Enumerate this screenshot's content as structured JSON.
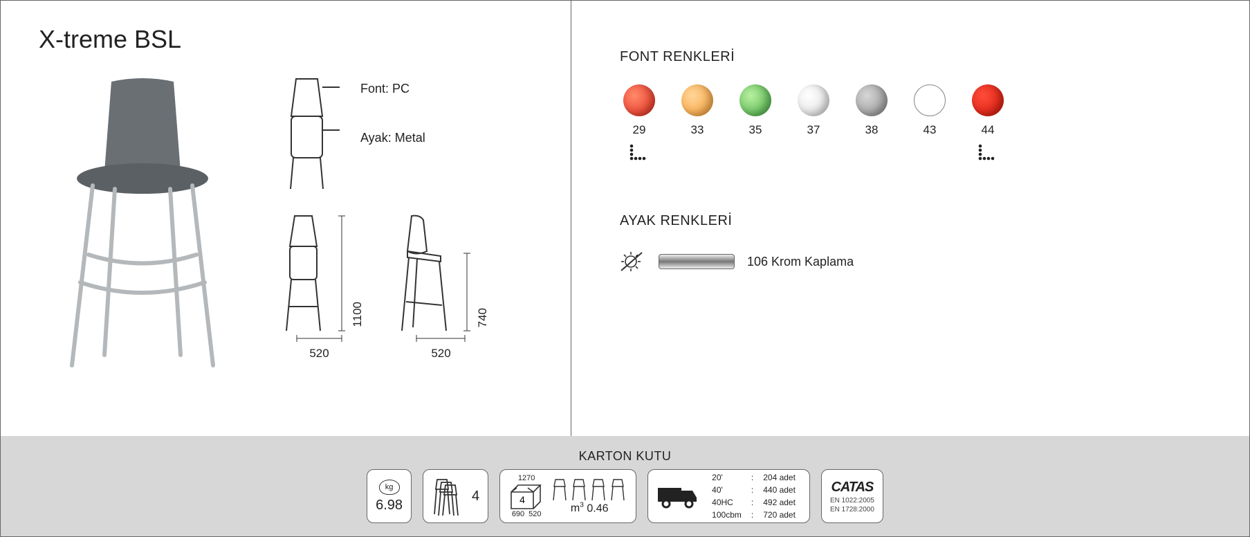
{
  "product": {
    "title": "X-treme BSL",
    "materials": {
      "font_label": "Font: PC",
      "leg_label": "Ayak: Metal"
    },
    "dimensions": {
      "front": {
        "width_mm": "520",
        "height_mm": "1100"
      },
      "side": {
        "width_mm": "520",
        "height_mm": "740"
      }
    },
    "photo": {
      "seat_color": "#6a6f74",
      "leg_color": "#b9bdc0"
    }
  },
  "font_colors": {
    "heading": "FONT RENKLERİ",
    "swatches": [
      {
        "code": "29",
        "fill": "radial-gradient(circle at 35% 35%, #ff8a6a, #e2261a)",
        "has_dots": true
      },
      {
        "code": "33",
        "fill": "radial-gradient(circle at 35% 35%, #ffd59a, #f59b2e)",
        "has_dots": false
      },
      {
        "code": "35",
        "fill": "radial-gradient(circle at 35% 35%, #b9f0a0, #3fa83f)",
        "has_dots": false
      },
      {
        "code": "37",
        "fill": "radial-gradient(circle at 35% 35%, #ffffff, #d9d9d9)",
        "has_dots": false
      },
      {
        "code": "38",
        "fill": "radial-gradient(circle at 35% 35%, #d6d6d6, #8a8a8a)",
        "has_dots": false
      },
      {
        "code": "43",
        "fill": "#ffffff",
        "outline": true,
        "has_dots": false
      },
      {
        "code": "44",
        "fill": "radial-gradient(circle at 35% 35%, #ff4d3a, #d11308)",
        "has_dots": true
      }
    ]
  },
  "leg_colors": {
    "heading": "AYAK RENKLERİ",
    "label": "106 Krom Kaplama"
  },
  "carton": {
    "heading": "KARTON KUTU",
    "weight_kg": "6.98",
    "stack_qty": "4",
    "box": {
      "qty": "4",
      "h": "1270",
      "w": "690",
      "d": "520",
      "volume_m3": "0.46"
    },
    "volume_unit": "m³",
    "shipping": [
      {
        "container": "20'",
        "qty": "204 adet"
      },
      {
        "container": "40'",
        "qty": "440 adet"
      },
      {
        "container": "40HC",
        "qty": "492 adet"
      },
      {
        "container": "100cbm",
        "qty": "720 adet"
      }
    ],
    "cert": {
      "name": "CATAS",
      "std1": "EN 1022:2005",
      "std2": "EN 1728:2000"
    }
  }
}
